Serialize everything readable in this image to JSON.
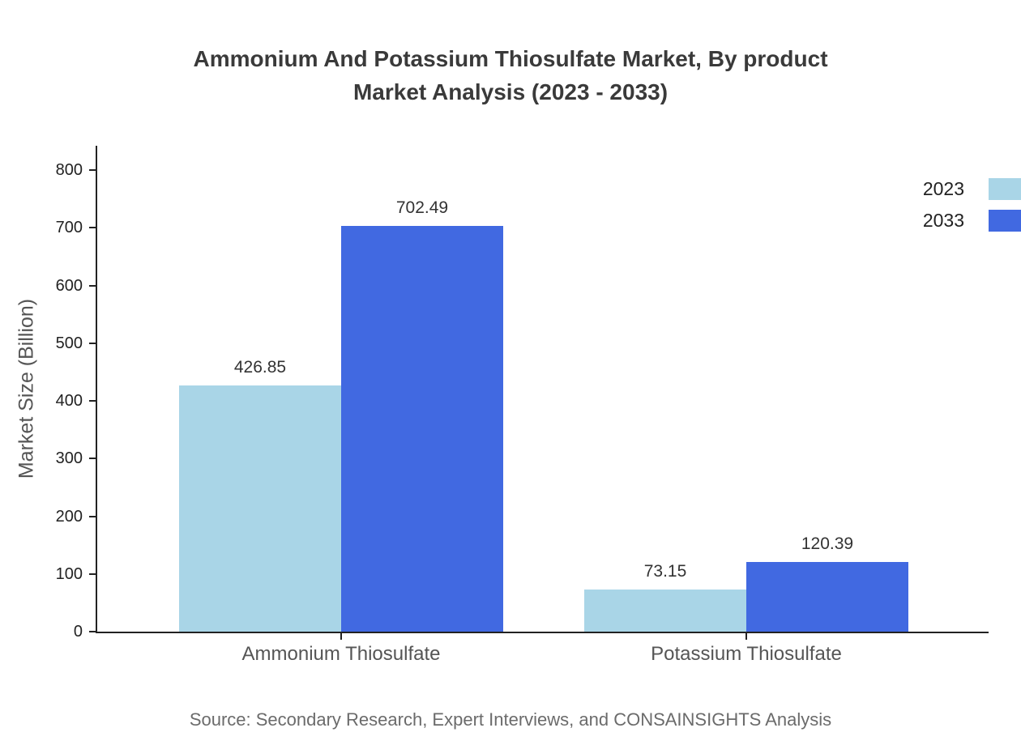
{
  "chart_data": {
    "type": "bar",
    "title": "Ammonium And Potassium Thiosulfate Market, By product Market Analysis (2023 - 2033)",
    "title_lines": [
      "Ammonium And Potassium Thiosulfate Market, By product",
      "Market Analysis (2023 - 2033)"
    ],
    "ylabel": "Market Size (Billion)",
    "xlabel": "",
    "categories": [
      "Ammonium Thiosulfate",
      "Potassium Thiosulfate"
    ],
    "series": [
      {
        "name": "2023",
        "color": "#a9d5e7",
        "values": [
          426.85,
          73.15
        ]
      },
      {
        "name": "2033",
        "color": "#4169e1",
        "values": [
          702.49,
          120.39
        ]
      }
    ],
    "value_labels": [
      [
        "426.85",
        "73.15"
      ],
      [
        "702.49",
        "120.39"
      ]
    ],
    "ylim": [
      0,
      800
    ],
    "yticks": [
      0,
      100,
      200,
      300,
      400,
      500,
      600,
      700,
      800
    ],
    "grid": false,
    "legend_position": "top-right",
    "source": "Source: Secondary Research, Expert Interviews, and CONSAINSIGHTS Analysis"
  }
}
